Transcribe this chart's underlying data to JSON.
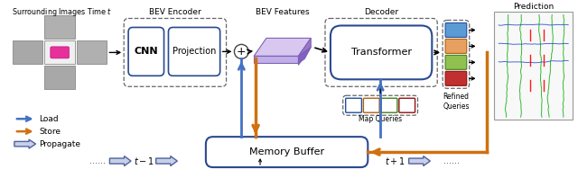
{
  "bg_color": "#ffffff",
  "blue_arrow": "#4472c4",
  "orange_arrow": "#d07010",
  "propagate_face": "#c8d0e8",
  "propagate_edge": "#5060a0",
  "box_edge_blue": "#2a4a90",
  "query_blue": "#5b9bd5",
  "query_orange": "#e8a060",
  "query_green": "#90c050",
  "query_red": "#c03030",
  "surrounding_imgs_title": "Surrounding Images Time $t$",
  "bev_encoder_title": "BEV Encoder",
  "bev_features_title": "BEV Features",
  "decoder_title": "Decoder",
  "prediction_title": "Prediction",
  "cnn_label": "CNN",
  "projection_label": "Projection",
  "transformer_label": "Transformer",
  "memory_buffer_label": "Memory Buffer",
  "map_queries_label": "Map Queries",
  "refined_queries_label": "Refined\nQueries",
  "load_label": "Load",
  "store_label": "Store",
  "propagate_label": "Propagate",
  "t_minus_1": "$t-1$",
  "t_plus_1": "$t+1$",
  "dots": "......"
}
